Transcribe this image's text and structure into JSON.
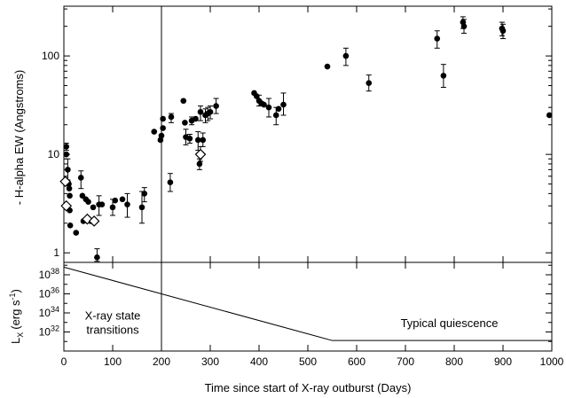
{
  "chart_data": [
    {
      "type": "scatter",
      "title": "",
      "xlabel": "",
      "ylabel": "- H-alpha EW (Angstroms)",
      "xlim": [
        0,
        1000
      ],
      "ylim": [
        0.8,
        320
      ],
      "y_scale": "log",
      "grid": false,
      "y_ticks": [
        1,
        10,
        100
      ],
      "y_tick_labels": [
        "1",
        "10",
        "100"
      ],
      "vertical_line_x": 200,
      "series": [
        {
          "marker": "filled-circle",
          "points": [
            {
              "x": 5,
              "y": 12,
              "err": [
                11,
                13
              ]
            },
            {
              "x": 5,
              "y": 10
            },
            {
              "x": 8,
              "y": 7,
              "err": [
                5.5,
                9
              ]
            },
            {
              "x": 10,
              "y": 5
            },
            {
              "x": 11,
              "y": 4.5
            },
            {
              "x": 12,
              "y": 3.8
            },
            {
              "x": 12,
              "y": 2.7
            },
            {
              "x": 13,
              "y": 1.9
            },
            {
              "x": 25,
              "y": 1.6
            },
            {
              "x": 35,
              "y": 5.8,
              "err": [
                4.5,
                6.8
              ]
            },
            {
              "x": 38,
              "y": 3.8
            },
            {
              "x": 40,
              "y": 2.1
            },
            {
              "x": 45,
              "y": 3.5
            },
            {
              "x": 50,
              "y": 3.3
            },
            {
              "x": 55,
              "y": 2.1
            },
            {
              "x": 60,
              "y": 2.9
            },
            {
              "x": 68,
              "y": 0.9,
              "err": [
                0.82,
                1.1
              ]
            },
            {
              "x": 72,
              "y": 3.1,
              "err": [
                2.4,
                3.8
              ]
            },
            {
              "x": 78,
              "y": 3.1
            },
            {
              "x": 100,
              "y": 2.9,
              "err": [
                2.4,
                3.5
              ]
            },
            {
              "x": 105,
              "y": 3.4
            },
            {
              "x": 120,
              "y": 3.5
            },
            {
              "x": 130,
              "y": 3.1,
              "err": [
                2.3,
                4.0
              ]
            },
            {
              "x": 160,
              "y": 2.9,
              "err": [
                2.0,
                4.2
              ]
            },
            {
              "x": 165,
              "y": 4.0,
              "err": [
                3.3,
                4.6
              ]
            },
            {
              "x": 185,
              "y": 17
            },
            {
              "x": 198,
              "y": 14
            },
            {
              "x": 200,
              "y": 15.5
            },
            {
              "x": 203,
              "y": 18.5
            },
            {
              "x": 203,
              "y": 23
            },
            {
              "x": 218,
              "y": 5.2,
              "err": [
                4.2,
                6.4
              ]
            },
            {
              "x": 220,
              "y": 24,
              "err": [
                21,
                26
              ]
            },
            {
              "x": 245,
              "y": 35
            },
            {
              "x": 248,
              "y": 21
            },
            {
              "x": 250,
              "y": 15,
              "err": [
                12.5,
                18
              ]
            },
            {
              "x": 258,
              "y": 14.5,
              "err": [
                13,
                16
              ]
            },
            {
              "x": 262,
              "y": 22,
              "err": [
                20,
                24
              ]
            },
            {
              "x": 270,
              "y": 23
            },
            {
              "x": 275,
              "y": 14,
              "err": [
                11,
                17
              ]
            },
            {
              "x": 278,
              "y": 8,
              "err": [
                7,
                9
              ]
            },
            {
              "x": 280,
              "y": 27,
              "err": [
                22,
                31
              ]
            },
            {
              "x": 285,
              "y": 14,
              "err": [
                12,
                16.5
              ]
            },
            {
              "x": 290,
              "y": 25,
              "err": [
                21,
                29
              ]
            },
            {
              "x": 295,
              "y": 26,
              "err": [
                22,
                30
              ]
            },
            {
              "x": 300,
              "y": 27,
              "err": [
                23,
                31
              ]
            },
            {
              "x": 312,
              "y": 31,
              "err": [
                26,
                37
              ]
            },
            {
              "x": 390,
              "y": 42
            },
            {
              "x": 395,
              "y": 39
            },
            {
              "x": 400,
              "y": 35,
              "err": [
                31,
                40
              ]
            },
            {
              "x": 405,
              "y": 33
            },
            {
              "x": 410,
              "y": 32
            },
            {
              "x": 420,
              "y": 30,
              "err": [
                24,
                37
              ]
            },
            {
              "x": 435,
              "y": 25,
              "err": [
                20,
                30
              ]
            },
            {
              "x": 440,
              "y": 29
            },
            {
              "x": 450,
              "y": 32,
              "err": [
                25,
                42
              ]
            },
            {
              "x": 540,
              "y": 78
            },
            {
              "x": 578,
              "y": 100,
              "err": [
                80,
                120
              ]
            },
            {
              "x": 625,
              "y": 53,
              "err": [
                44,
                64
              ]
            },
            {
              "x": 765,
              "y": 150,
              "err": [
                120,
                180
              ]
            },
            {
              "x": 778,
              "y": 63,
              "err": [
                48,
                82
              ]
            },
            {
              "x": 818,
              "y": 220,
              "err": [
                190,
                250
              ]
            },
            {
              "x": 820,
              "y": 200,
              "err": [
                170,
                235
              ]
            },
            {
              "x": 898,
              "y": 190,
              "err": [
                160,
                220
              ]
            },
            {
              "x": 900,
              "y": 180,
              "err": [
                150,
                210
              ]
            },
            {
              "x": 995,
              "y": 25
            }
          ]
        },
        {
          "marker": "open-diamond",
          "points": [
            {
              "x": 3,
              "y": 5.3
            },
            {
              "x": 5,
              "y": 3.0
            },
            {
              "x": 48,
              "y": 2.2
            },
            {
              "x": 62,
              "y": 2.1
            },
            {
              "x": 280,
              "y": 10,
              "err": [
                8.5,
                12
              ]
            }
          ]
        }
      ]
    },
    {
      "type": "line",
      "title": "",
      "xlabel": "Time since start of X-ray outburst (Days)",
      "ylabel": "L",
      "ylabel_sub": "X",
      "ylabel_unit_open": "(erg s",
      "ylabel_unit_sup": "-1",
      "ylabel_unit_close": ")",
      "xlim": [
        0,
        1000
      ],
      "ylim": [
        30,
        39.3
      ],
      "y_scale": "log",
      "grid": false,
      "x_ticks": [
        0,
        100,
        200,
        300,
        400,
        500,
        600,
        700,
        800,
        900,
        1000
      ],
      "x_tick_labels": [
        "0",
        "100",
        "200",
        "300",
        "400",
        "500",
        "600",
        "700",
        "800",
        "900",
        "1000"
      ],
      "y_ticks": [
        32,
        34,
        36,
        38
      ],
      "y_tick_base": [
        "10",
        "10",
        "10",
        "10"
      ],
      "y_tick_exponents": [
        "32",
        "34",
        "36",
        "38"
      ],
      "vertical_line_x": 200,
      "series": [
        {
          "x": [
            0,
            550,
            1000
          ],
          "y": [
            38.8,
            31.1,
            31.1
          ]
        }
      ],
      "annotations": [
        {
          "lines": [
            "X-ray state",
            "transitions"
          ],
          "x": 100,
          "y": 33.3
        },
        {
          "lines": [
            "Typical quiescence"
          ],
          "x": 790,
          "y": 32.5
        }
      ]
    }
  ]
}
